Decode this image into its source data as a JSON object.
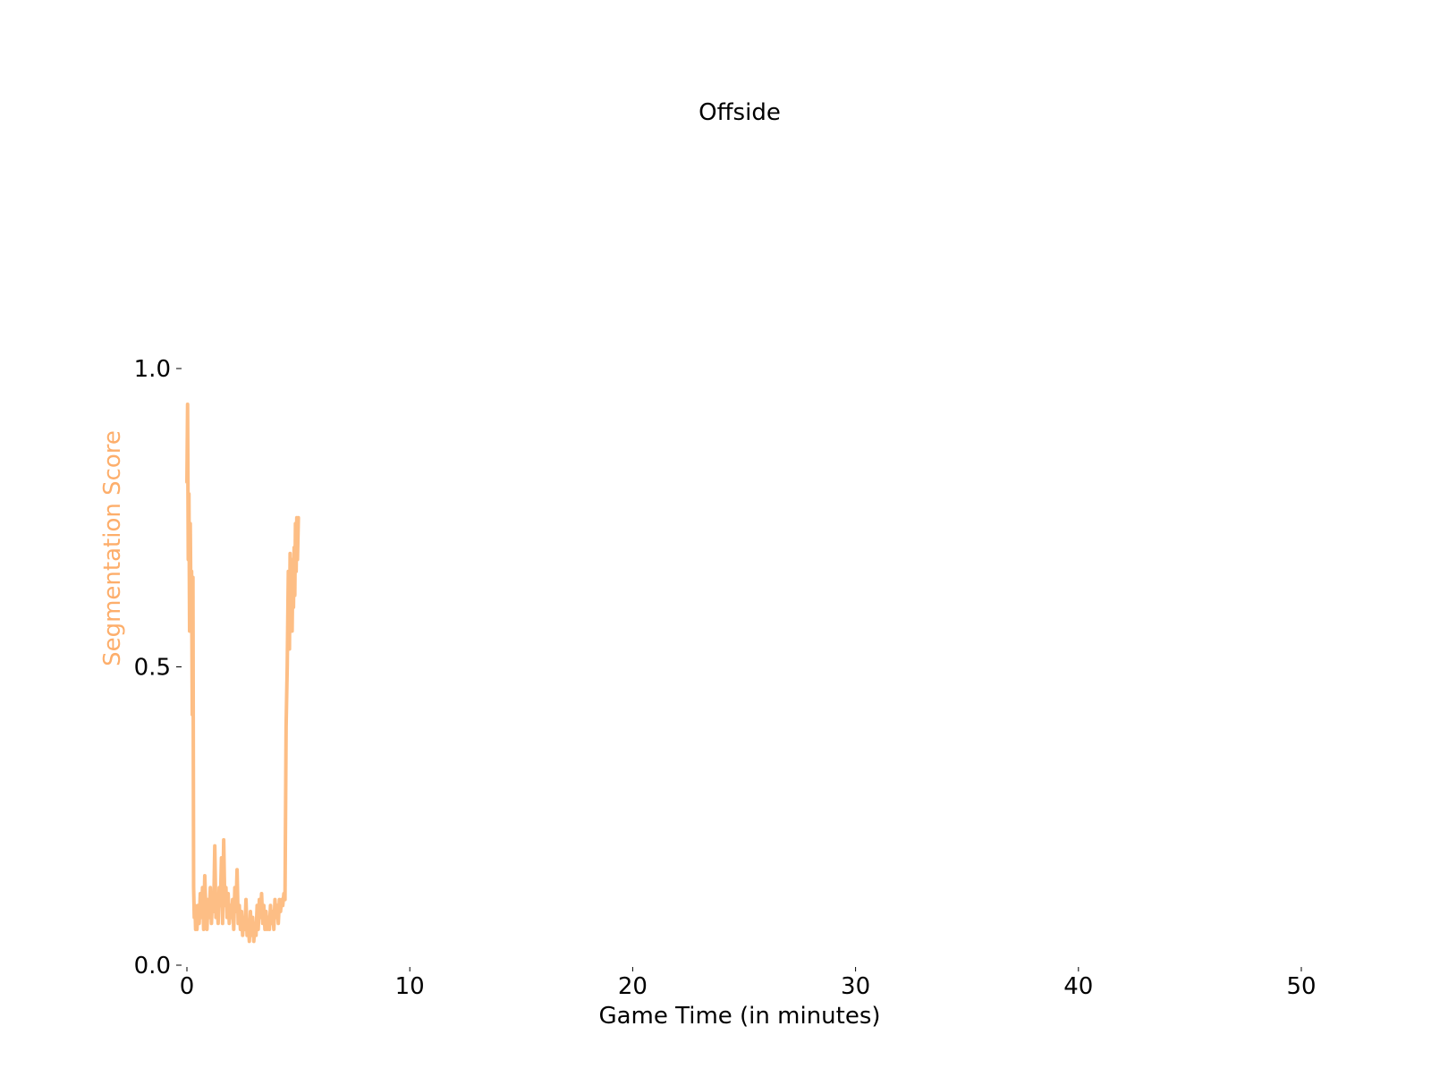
{
  "chart_data": {
    "type": "line",
    "title": "Offside",
    "xlabel": "Game Time (in minutes)",
    "ylabel": "Segmentation Score",
    "xlim": [
      0,
      50
    ],
    "ylim": [
      0,
      1
    ],
    "x_ticks": [
      0,
      10,
      20,
      30,
      40,
      50
    ],
    "y_ticks": [
      0.0,
      0.5,
      1.0
    ],
    "y_tick_labels": [
      "0.0",
      "0.5",
      "1.0"
    ],
    "grid": false,
    "series": [
      {
        "color": "#fdbe85",
        "x": [
          0.0,
          0.03,
          0.06,
          0.09,
          0.12,
          0.15,
          0.18,
          0.21,
          0.24,
          0.27,
          0.3,
          0.33,
          0.36,
          0.39,
          0.42,
          0.45,
          0.5,
          0.55,
          0.6,
          0.65,
          0.7,
          0.75,
          0.8,
          0.85,
          0.9,
          0.95,
          1.0,
          1.05,
          1.1,
          1.15,
          1.2,
          1.25,
          1.3,
          1.35,
          1.4,
          1.45,
          1.5,
          1.55,
          1.6,
          1.65,
          1.7,
          1.75,
          1.8,
          1.85,
          1.9,
          1.95,
          2.0,
          2.05,
          2.1,
          2.15,
          2.2,
          2.25,
          2.3,
          2.35,
          2.4,
          2.45,
          2.5,
          2.55,
          2.6,
          2.65,
          2.7,
          2.75,
          2.8,
          2.85,
          2.9,
          2.95,
          3.0,
          3.05,
          3.1,
          3.15,
          3.2,
          3.25,
          3.3,
          3.35,
          3.4,
          3.45,
          3.5,
          3.55,
          3.6,
          3.65,
          3.7,
          3.75,
          3.8,
          3.85,
          3.9,
          3.95,
          4.0,
          4.05,
          4.1,
          4.15,
          4.2,
          4.25,
          4.3,
          4.35,
          4.4,
          4.45,
          4.5,
          4.55,
          4.6,
          4.63,
          4.66,
          4.69,
          4.72,
          4.75,
          4.78,
          4.81,
          4.84,
          4.87,
          4.9,
          4.93,
          4.96,
          5.0
        ],
        "y": [
          0.81,
          0.94,
          0.68,
          0.79,
          0.56,
          0.74,
          0.6,
          0.66,
          0.42,
          0.65,
          0.13,
          0.08,
          0.1,
          0.06,
          0.09,
          0.06,
          0.1,
          0.07,
          0.12,
          0.08,
          0.13,
          0.06,
          0.15,
          0.09,
          0.06,
          0.11,
          0.08,
          0.13,
          0.07,
          0.12,
          0.09,
          0.2,
          0.08,
          0.11,
          0.07,
          0.13,
          0.1,
          0.18,
          0.07,
          0.21,
          0.1,
          0.13,
          0.08,
          0.12,
          0.07,
          0.1,
          0.08,
          0.11,
          0.06,
          0.13,
          0.09,
          0.16,
          0.07,
          0.1,
          0.06,
          0.09,
          0.05,
          0.08,
          0.06,
          0.11,
          0.05,
          0.07,
          0.04,
          0.09,
          0.05,
          0.08,
          0.04,
          0.07,
          0.05,
          0.1,
          0.06,
          0.11,
          0.08,
          0.12,
          0.07,
          0.1,
          0.06,
          0.09,
          0.06,
          0.08,
          0.06,
          0.1,
          0.07,
          0.09,
          0.06,
          0.11,
          0.08,
          0.1,
          0.07,
          0.11,
          0.09,
          0.11,
          0.1,
          0.12,
          0.11,
          0.4,
          0.5,
          0.66,
          0.53,
          0.69,
          0.6,
          0.68,
          0.56,
          0.66,
          0.6,
          0.7,
          0.62,
          0.74,
          0.66,
          0.75,
          0.68,
          0.75
        ]
      }
    ]
  }
}
